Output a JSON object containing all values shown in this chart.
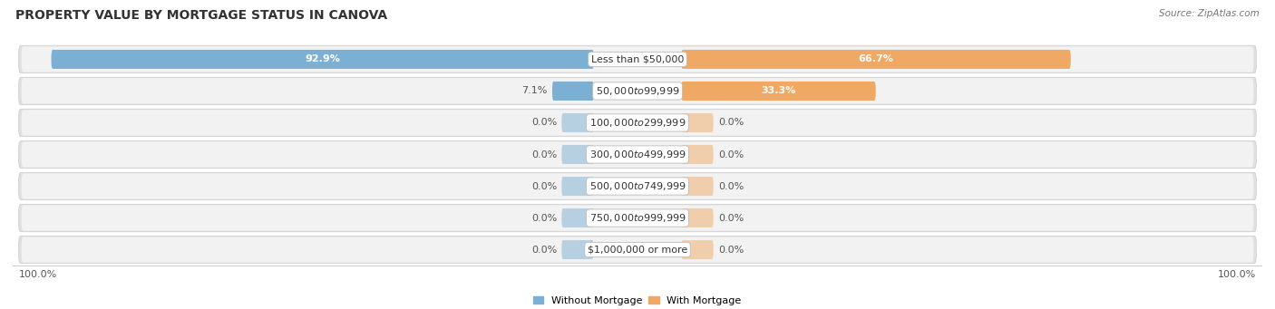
{
  "title": "PROPERTY VALUE BY MORTGAGE STATUS IN CANOVA",
  "source": "Source: ZipAtlas.com",
  "categories": [
    "Less than $50,000",
    "$50,000 to $99,999",
    "$100,000 to $299,999",
    "$300,000 to $499,999",
    "$500,000 to $749,999",
    "$750,000 to $999,999",
    "$1,000,000 or more"
  ],
  "without_mortgage": [
    92.9,
    7.1,
    0.0,
    0.0,
    0.0,
    0.0,
    0.0
  ],
  "with_mortgage": [
    66.7,
    33.3,
    0.0,
    0.0,
    0.0,
    0.0,
    0.0
  ],
  "color_without": "#7bafd4",
  "color_with": "#f0a965",
  "bg_row_color": "#e8e8e8",
  "bg_row_inner": "#f0f0f0",
  "label_100_left": "100.0%",
  "label_100_right": "100.0%",
  "title_fontsize": 10,
  "source_fontsize": 7.5,
  "bar_label_fontsize": 8,
  "category_fontsize": 8,
  "legend_fontsize": 8
}
